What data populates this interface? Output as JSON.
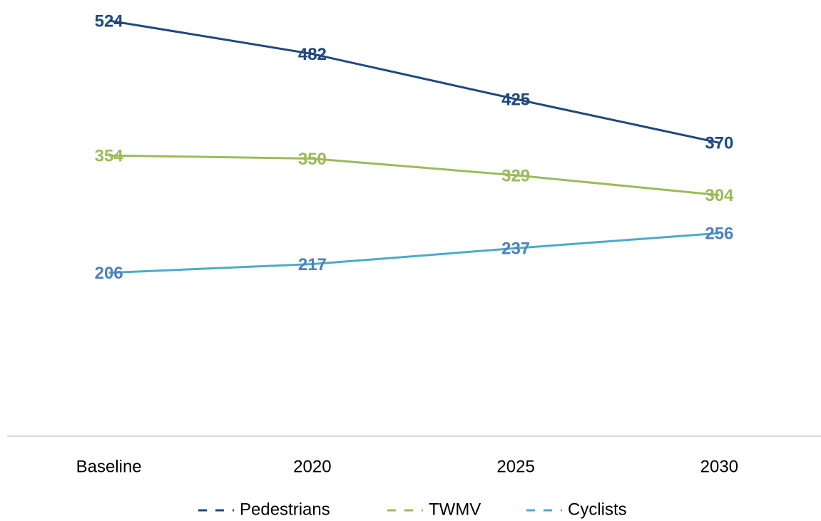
{
  "chart_data": {
    "type": "line",
    "categories": [
      "Baseline",
      "2020",
      "2025",
      "2030"
    ],
    "series": [
      {
        "name": "Pedestrians",
        "color": "#1f497d",
        "label_color": "#1f497d",
        "values": [
          524,
          482,
          425,
          370
        ]
      },
      {
        "name": "TWMV",
        "color": "#9bbb59",
        "label_color": "#9bbb59",
        "values": [
          354,
          350,
          329,
          304
        ]
      },
      {
        "name": "Cyclists",
        "color": "#4bacc6",
        "label_color": "#4f81bd",
        "values": [
          206,
          217,
          237,
          256
        ]
      }
    ],
    "ylim": [
      0,
      550
    ]
  }
}
